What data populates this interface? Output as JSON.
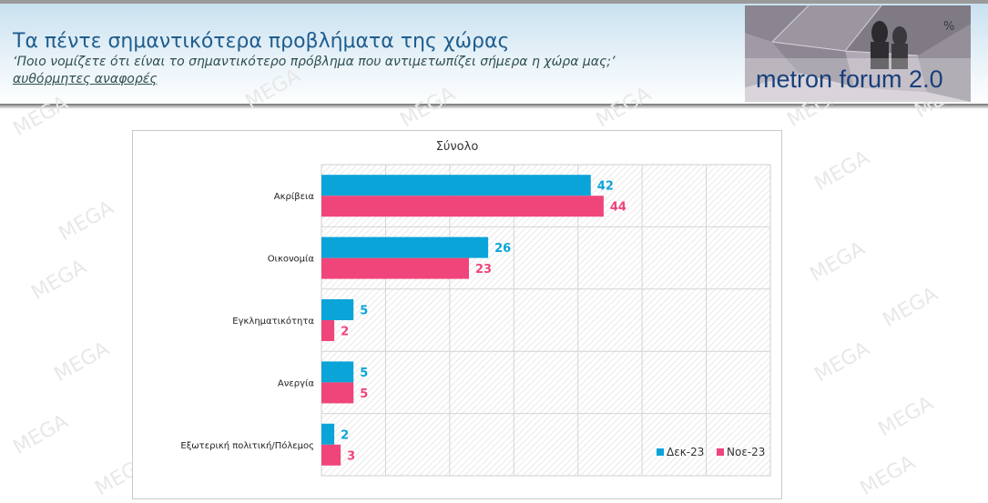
{
  "header": {
    "title": "Τα πέντε σημαντικότερα προβλήματα της χώρας",
    "subtitle": "‘Ποιο νομίζετε ότι είναι το σημαντικότερο πρόβλημα που αντιμετωπίζει σήμερα η χώρα μας;’",
    "note": "αυθόρμητες αναφορές"
  },
  "logo": {
    "text": "metron forum 2.0",
    "symbol": "%"
  },
  "watermark": {
    "text": "MEGA"
  },
  "colors": {
    "series1": "#0aa4d8",
    "series2": "#f0457a",
    "title": "#1f5d8e"
  },
  "chart_data": {
    "type": "bar",
    "orientation": "horizontal",
    "title": "Σύνολο",
    "categories": [
      "Ακρίβεια",
      "Οικονομία",
      "Εγκληματικότητα",
      "Ανεργία",
      "Εξωτερική πολιτική/Πόλεμος"
    ],
    "series": [
      {
        "name": "Δεκ-23",
        "color": "#0aa4d8",
        "values": [
          42,
          26,
          5,
          5,
          2
        ]
      },
      {
        "name": "Νοε-23",
        "color": "#f0457a",
        "values": [
          44,
          23,
          2,
          5,
          3
        ]
      }
    ],
    "xlim": [
      0,
      70
    ],
    "grid": true,
    "legend": "bottom-right"
  }
}
